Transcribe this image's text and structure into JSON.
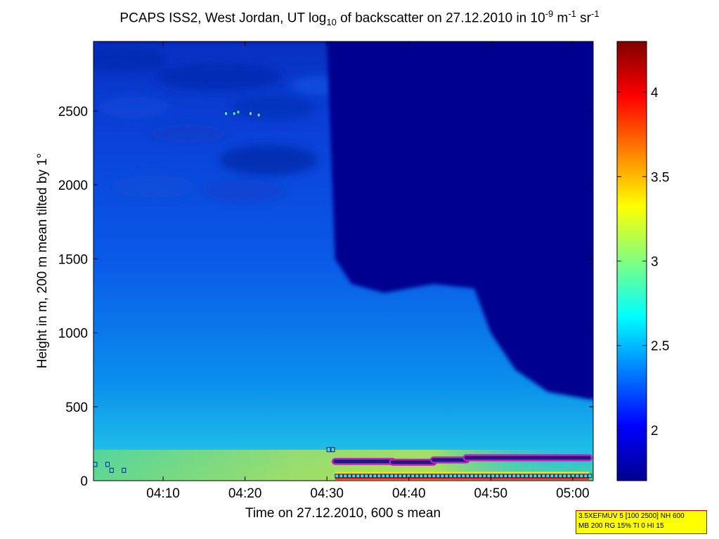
{
  "title": {
    "part1": "PCAPS ISS2, West Jordan, UT log",
    "sub1": "10",
    "part2": " of backscatter on 27.12.2010 in 10",
    "sup1": "-9",
    "part3": " m",
    "sup2": "-1",
    "part4": " sr",
    "sup3": "-1"
  },
  "chart_data": {
    "type": "heatmap",
    "xlabel": "Time on 27.12.2010, 600 s mean",
    "ylabel": "Height in m, 200 m mean tilted by 1°",
    "x_ticks": [
      "04:10",
      "04:20",
      "04:30",
      "04:40",
      "04:50",
      "05:00"
    ],
    "y_ticks": [
      0,
      500,
      1000,
      1500,
      2000,
      2500
    ],
    "ylim": [
      0,
      2970
    ],
    "xlim_minutes": [
      1.5,
      62.5
    ],
    "colorbar": {
      "ticks": [
        2,
        2.5,
        3,
        3.5,
        4
      ],
      "range": [
        1.7,
        4.3
      ],
      "colormap": "jet"
    },
    "background_field": {
      "upper_boundary_height_m": [
        {
          "t": "04:02",
          "h": 2970
        },
        {
          "t": "04:30",
          "h": 2970
        },
        {
          "t": "04:31",
          "h": 1500
        },
        {
          "t": "04:33",
          "h": 1330
        },
        {
          "t": "04:37",
          "h": 1270
        },
        {
          "t": "04:40",
          "h": 1300
        },
        {
          "t": "04:43",
          "h": 1330
        },
        {
          "t": "04:48",
          "h": 1300
        },
        {
          "t": "04:50",
          "h": 1000
        },
        {
          "t": "04:53",
          "h": 750
        },
        {
          "t": "04:57",
          "h": 600
        },
        {
          "t": "05:02",
          "h": 550
        }
      ]
    },
    "markers": {
      "layer_top_m": [
        {
          "t_start": "04:31",
          "t_end": "04:38",
          "h": 130
        },
        {
          "t_start": "04:38",
          "t_end": "04:43",
          "h": 125
        },
        {
          "t_start": "04:43",
          "t_end": "04:47",
          "h": 140
        },
        {
          "t_start": "04:47",
          "t_end": "05:02",
          "h": 155
        }
      ],
      "squares_m": [
        {
          "t": "04:01.5",
          "h": 110
        },
        {
          "t": "04:03",
          "h": 110
        },
        {
          "t": "04:03.5",
          "h": 70
        },
        {
          "t": "04:05",
          "h": 70
        },
        {
          "t": "04:30",
          "h": 210
        },
        {
          "t": "04:30.5",
          "h": 210
        }
      ],
      "upper_squares_m": [
        {
          "t": "04:17.5",
          "h": 2480
        },
        {
          "t": "04:18.5",
          "h": 2480
        },
        {
          "t": "04:19",
          "h": 2490
        },
        {
          "t": "04:20.5",
          "h": 2480
        },
        {
          "t": "04:21.5",
          "h": 2470
        }
      ]
    }
  },
  "info_box": {
    "line1": "3.5XEFMUV 5 [100 2500] NH 600",
    "line2": "MB 200 RG 15% TI 0 HI 15"
  }
}
